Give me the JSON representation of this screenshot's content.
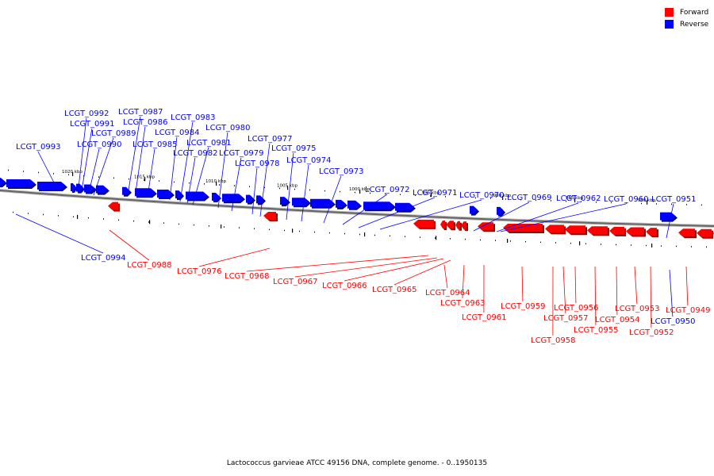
{
  "legend": {
    "forward": {
      "label": "Forward",
      "color": "#ff0000"
    },
    "reverse": {
      "label": "Reverse",
      "color": "#0000ff"
    }
  },
  "caption": "Lactococcus garvieae ATCC 49156 DNA, complete genome. - 0..1950135",
  "ticks": [
    "1020 kbp",
    "1015 kbp",
    "1010 kbp",
    "1005 kbp",
    "1000 kbp",
    "995 kbp",
    "990 kbp",
    "985 kbp",
    "980 kbp"
  ],
  "genes": [
    {
      "label": "LCGT_0992",
      "strand": "reverse"
    },
    {
      "label": "LCGT_0991",
      "strand": "reverse"
    },
    {
      "label": "LCGT_0990",
      "strand": "reverse"
    },
    {
      "label": "LCGT_0989",
      "strand": "reverse"
    },
    {
      "label": "LCGT_0993",
      "strand": "reverse"
    },
    {
      "label": "LCGT_0987",
      "strand": "reverse"
    },
    {
      "label": "LCGT_0986",
      "strand": "reverse"
    },
    {
      "label": "LCGT_0985",
      "strand": "reverse"
    },
    {
      "label": "LCGT_0984",
      "strand": "reverse"
    },
    {
      "label": "LCGT_0983",
      "strand": "reverse"
    },
    {
      "label": "LCGT_0982",
      "strand": "reverse"
    },
    {
      "label": "LCGT_0981",
      "strand": "reverse"
    },
    {
      "label": "LCGT_0980",
      "strand": "reverse"
    },
    {
      "label": "LCGT_0979",
      "strand": "reverse"
    },
    {
      "label": "LCGT_0978",
      "strand": "reverse"
    },
    {
      "label": "LCGT_0977",
      "strand": "reverse"
    },
    {
      "label": "LCGT_0975",
      "strand": "reverse"
    },
    {
      "label": "LCGT_0974",
      "strand": "reverse"
    },
    {
      "label": "LCGT_0973",
      "strand": "reverse"
    },
    {
      "label": "LCGT_0972",
      "strand": "reverse"
    },
    {
      "label": "LCGT_0971",
      "strand": "reverse"
    },
    {
      "label": "LCGT_0970",
      "strand": "reverse"
    },
    {
      "label": "LCGT_0969",
      "strand": "reverse"
    },
    {
      "label": "LCGT_0962",
      "strand": "reverse"
    },
    {
      "label": "LCGT_0960",
      "strand": "reverse"
    },
    {
      "label": "LCGT_0951",
      "strand": "reverse"
    },
    {
      "label": "LCGT_0994",
      "strand": "reverse"
    },
    {
      "label": "LCGT_0950",
      "strand": "reverse"
    },
    {
      "label": "LCGT_0988",
      "strand": "forward"
    },
    {
      "label": "LCGT_0976",
      "strand": "forward"
    },
    {
      "label": "LCGT_0968",
      "strand": "forward"
    },
    {
      "label": "LCGT_0967",
      "strand": "forward"
    },
    {
      "label": "LCGT_0966",
      "strand": "forward"
    },
    {
      "label": "LCGT_0965",
      "strand": "forward"
    },
    {
      "label": "LCGT_0964",
      "strand": "forward"
    },
    {
      "label": "LCGT_0963",
      "strand": "forward"
    },
    {
      "label": "LCGT_0961",
      "strand": "forward"
    },
    {
      "label": "LCGT_0959",
      "strand": "forward"
    },
    {
      "label": "LCGT_0958",
      "strand": "forward"
    },
    {
      "label": "LCGT_0957",
      "strand": "forward"
    },
    {
      "label": "LCGT_0956",
      "strand": "forward"
    },
    {
      "label": "LCGT_0955",
      "strand": "forward"
    },
    {
      "label": "LCGT_0954",
      "strand": "forward"
    },
    {
      "label": "LCGT_0953",
      "strand": "forward"
    },
    {
      "label": "LCGT_0952",
      "strand": "forward"
    },
    {
      "label": "LCGT_0949",
      "strand": "forward"
    }
  ]
}
